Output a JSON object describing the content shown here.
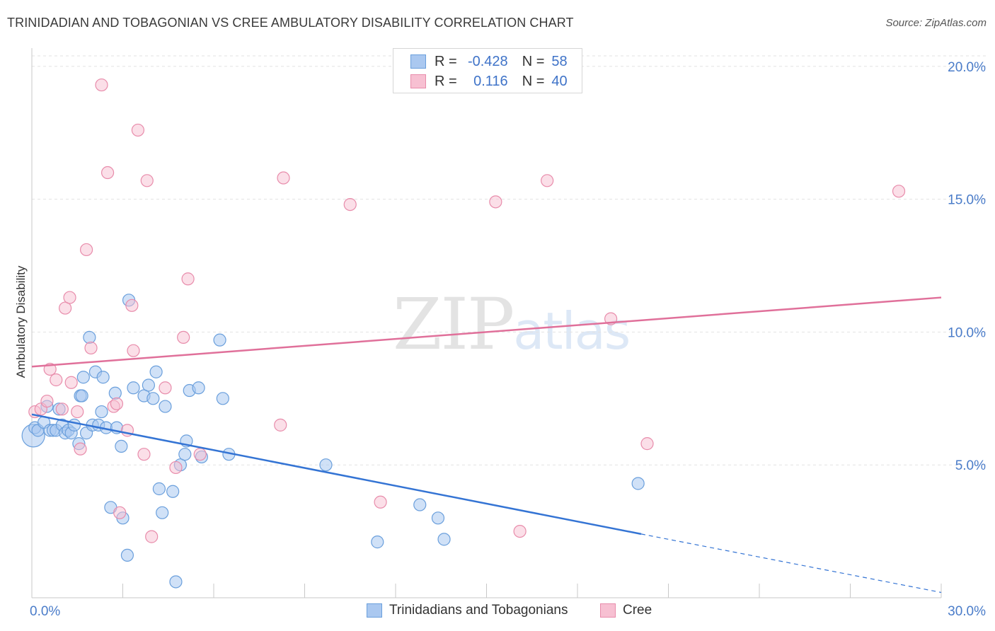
{
  "title": "TRINIDADIAN AND TOBAGONIAN VS CREE AMBULATORY DISABILITY CORRELATION CHART",
  "source": "Source: ZipAtlas.com",
  "watermark": {
    "part1": "ZIP",
    "part2": "atlas"
  },
  "legend": {
    "rows": [
      {
        "r_label": "R =",
        "r_value": "-0.428",
        "n_label": "N =",
        "n_value": "58"
      },
      {
        "r_label": "R =",
        "r_value": "0.116",
        "n_label": "N =",
        "n_value": "40"
      }
    ]
  },
  "bottom_legend": {
    "series1": "Trinidadians and Tobagonians",
    "series2": "Cree"
  },
  "colors": {
    "blue_fill": "#aac8f0",
    "blue_stroke": "#6a9fdc",
    "blue_line": "#3474d4",
    "pink_fill": "#f7c0d2",
    "pink_stroke": "#e88cab",
    "pink_line": "#e0709a",
    "tick_text": "#4a7cc9",
    "grid": "#e2e2e2"
  },
  "chart_data": {
    "type": "scatter",
    "title": "TRINIDADIAN AND TOBAGONIAN VS CREE AMBULATORY DISABILITY CORRELATION CHART",
    "xlabel": "",
    "ylabel": "Ambulatory Disability",
    "xlim": [
      0,
      30
    ],
    "ylim": [
      0,
      20.5
    ],
    "x_tick_labels": {
      "min": "0.0%",
      "max": "30.0%"
    },
    "y_ticks": [
      {
        "value": 5,
        "label": "5.0%"
      },
      {
        "value": 10,
        "label": "10.0%"
      },
      {
        "value": 15,
        "label": "15.0%"
      },
      {
        "value": 20,
        "label": "20.0%"
      }
    ],
    "series": [
      {
        "name": "Trinidadians and Tobagonians",
        "R": -0.428,
        "N": 58,
        "trend": {
          "x0": 0,
          "y0": 6.9,
          "x1": 20.1,
          "y1": 2.4,
          "dash_to_x": 30,
          "dash_to_y": 0.2
        },
        "points": [
          [
            0.05,
            6.1
          ],
          [
            0.1,
            6.4
          ],
          [
            0.2,
            6.3
          ],
          [
            0.4,
            6.6
          ],
          [
            0.5,
            7.2
          ],
          [
            0.6,
            6.3
          ],
          [
            0.7,
            6.3
          ],
          [
            0.8,
            6.3
          ],
          [
            0.9,
            7.1
          ],
          [
            1.0,
            6.5
          ],
          [
            1.1,
            6.2
          ],
          [
            1.2,
            6.3
          ],
          [
            1.3,
            6.2
          ],
          [
            1.4,
            6.5
          ],
          [
            1.55,
            5.8
          ],
          [
            1.6,
            7.6
          ],
          [
            1.65,
            7.6
          ],
          [
            1.7,
            8.3
          ],
          [
            1.8,
            6.2
          ],
          [
            1.9,
            9.8
          ],
          [
            2.0,
            6.5
          ],
          [
            2.1,
            8.5
          ],
          [
            2.2,
            6.5
          ],
          [
            2.3,
            7.0
          ],
          [
            2.35,
            8.3
          ],
          [
            2.45,
            6.4
          ],
          [
            2.6,
            3.4
          ],
          [
            2.75,
            7.7
          ],
          [
            2.8,
            6.4
          ],
          [
            2.95,
            5.7
          ],
          [
            3.0,
            3.0
          ],
          [
            3.15,
            1.6
          ],
          [
            3.2,
            11.2
          ],
          [
            3.35,
            7.9
          ],
          [
            3.7,
            7.6
          ],
          [
            3.85,
            8.0
          ],
          [
            4.0,
            7.5
          ],
          [
            4.1,
            8.5
          ],
          [
            4.2,
            4.1
          ],
          [
            4.3,
            3.2
          ],
          [
            4.4,
            7.2
          ],
          [
            4.65,
            4.0
          ],
          [
            4.75,
            0.6
          ],
          [
            4.9,
            5.0
          ],
          [
            5.05,
            5.4
          ],
          [
            5.1,
            5.9
          ],
          [
            5.2,
            7.8
          ],
          [
            5.5,
            7.9
          ],
          [
            5.6,
            5.3
          ],
          [
            6.2,
            9.7
          ],
          [
            6.3,
            7.5
          ],
          [
            6.5,
            5.4
          ],
          [
            9.7,
            5.0
          ],
          [
            11.4,
            2.1
          ],
          [
            12.8,
            3.5
          ],
          [
            13.4,
            3.0
          ],
          [
            13.6,
            2.2
          ],
          [
            20.0,
            4.3
          ]
        ]
      },
      {
        "name": "Cree",
        "R": 0.116,
        "N": 40,
        "trend": {
          "x0": 0,
          "y0": 8.7,
          "x1": 30,
          "y1": 11.3
        },
        "points": [
          [
            0.1,
            7.0
          ],
          [
            0.3,
            7.1
          ],
          [
            0.5,
            7.4
          ],
          [
            0.6,
            8.6
          ],
          [
            0.8,
            8.2
          ],
          [
            1.0,
            7.1
          ],
          [
            1.1,
            10.9
          ],
          [
            1.25,
            11.3
          ],
          [
            1.3,
            8.1
          ],
          [
            1.5,
            7.0
          ],
          [
            1.6,
            5.6
          ],
          [
            1.8,
            13.1
          ],
          [
            1.95,
            9.4
          ],
          [
            2.3,
            19.3
          ],
          [
            2.5,
            16.0
          ],
          [
            2.7,
            7.2
          ],
          [
            2.8,
            7.3
          ],
          [
            2.9,
            3.2
          ],
          [
            3.15,
            6.3
          ],
          [
            3.3,
            11.0
          ],
          [
            3.35,
            9.3
          ],
          [
            3.5,
            17.6
          ],
          [
            3.7,
            5.4
          ],
          [
            3.8,
            15.7
          ],
          [
            3.95,
            2.3
          ],
          [
            4.4,
            7.9
          ],
          [
            4.75,
            4.9
          ],
          [
            5.0,
            9.8
          ],
          [
            5.15,
            12.0
          ],
          [
            5.55,
            5.4
          ],
          [
            8.2,
            6.5
          ],
          [
            8.3,
            15.8
          ],
          [
            10.5,
            14.8
          ],
          [
            11.5,
            3.6
          ],
          [
            15.3,
            14.9
          ],
          [
            16.1,
            2.5
          ],
          [
            17.0,
            15.7
          ],
          [
            19.1,
            10.5
          ],
          [
            20.3,
            5.8
          ],
          [
            28.6,
            15.3
          ]
        ]
      }
    ]
  }
}
